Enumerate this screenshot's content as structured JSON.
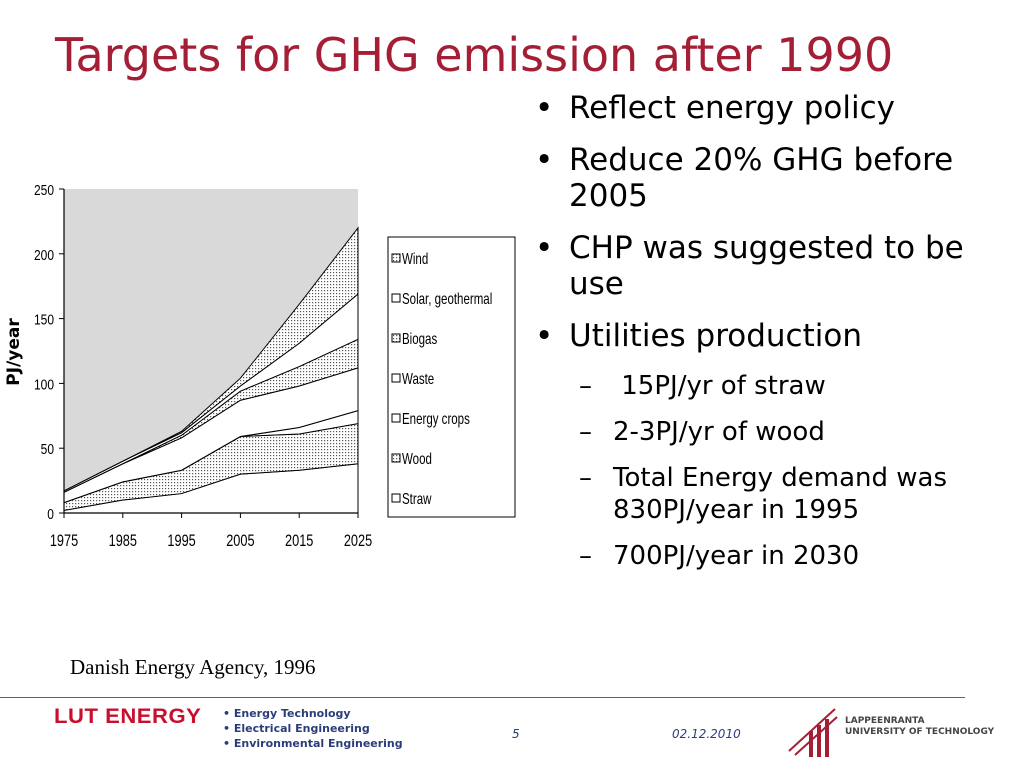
{
  "slide": {
    "title": "Targets for GHG emission after 1990",
    "bullets": [
      {
        "text": "Reflect energy policy"
      },
      {
        "text": "Reduce 20% GHG before 2005"
      },
      {
        "text": "CHP was suggested to be use"
      },
      {
        "text": "Utilities production"
      }
    ],
    "sub_bullets": [
      {
        "text": " 15PJ/yr of straw"
      },
      {
        "text": "2-3PJ/yr of wood"
      },
      {
        "text": "Total Energy demand was 830PJ/year in 1995"
      },
      {
        "text": "700PJ/year in 2030"
      }
    ],
    "bullet_glyph": "•",
    "sub_glyph": "–",
    "source": "Danish Energy Agency, 1996"
  },
  "footer": {
    "brand": "LUT ENERGY",
    "departments": [
      "• Energy Technology",
      "• Electrical Engineering",
      "• Environmental Engineering"
    ],
    "page_number": "5",
    "date": "02.12.2010",
    "university_line1": "LAPPEENRANTA",
    "university_line2": "UNIVERSITY OF TECHNOLOGY",
    "brand_color": "#c8102e",
    "title_color": "#a41f35"
  },
  "chart_data": {
    "type": "area",
    "ylabel": "PJ/year",
    "xlabel": "",
    "x": [
      1975,
      1985,
      1995,
      2005,
      2015,
      2025
    ],
    "xticks": [
      "1975",
      "1985",
      "1995",
      "2005",
      "2015",
      "2025"
    ],
    "yticks": [
      "0",
      "50",
      "100",
      "150",
      "200",
      "250"
    ],
    "xlim": [
      1975,
      2025
    ],
    "ylim": [
      0,
      250
    ],
    "grid": false,
    "stacked": true,
    "legend_position": "right",
    "legend": [
      "Wind",
      "Solar, geothermal",
      "Biogas",
      "Waste",
      "Energy crops",
      "Wood",
      "Straw"
    ],
    "series": [
      {
        "name": "Straw",
        "values": [
          2,
          10,
          15,
          30,
          33,
          38
        ],
        "pattern": "blank"
      },
      {
        "name": "Wood",
        "values": [
          6,
          14,
          18,
          29,
          28,
          31
        ],
        "pattern": "dotted"
      },
      {
        "name": "Energy crops",
        "values": [
          0,
          0,
          0,
          0,
          5,
          10
        ],
        "pattern": "blank"
      },
      {
        "name": "Waste",
        "values": [
          8,
          14,
          25,
          28,
          32,
          33
        ],
        "pattern": "blank"
      },
      {
        "name": "Biogas",
        "values": [
          0,
          0,
          2,
          7,
          15,
          22
        ],
        "pattern": "dotted"
      },
      {
        "name": "Solar, geothermal",
        "values": [
          1,
          2,
          2,
          4,
          18,
          35
        ],
        "pattern": "blank"
      },
      {
        "name": "Wind",
        "values": [
          0,
          0,
          1,
          6,
          30,
          51
        ],
        "pattern": "dotted"
      }
    ]
  }
}
